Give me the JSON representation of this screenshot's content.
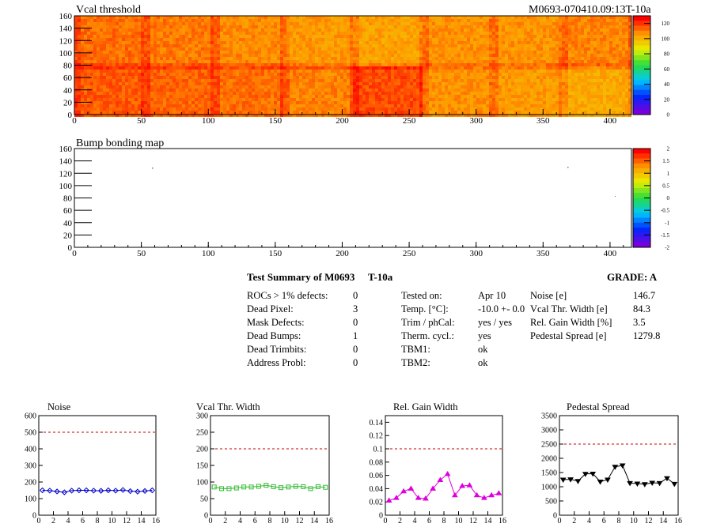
{
  "heatmaps": [
    {
      "title": "Vcal threshold",
      "header_right": "M0693-070410.09:13T-10a",
      "x_ticks": [
        "0",
        "50",
        "100",
        "150",
        "200",
        "250",
        "300",
        "350",
        "400"
      ],
      "y_ticks": [
        "0",
        "20",
        "40",
        "60",
        "80",
        "100",
        "120",
        "140",
        "160"
      ],
      "z_ticks": [
        "0",
        "20",
        "40",
        "60",
        "80",
        "100",
        "120"
      ]
    },
    {
      "title": "Bump bonding map",
      "x_ticks": [
        "0",
        "50",
        "100",
        "150",
        "200",
        "250",
        "300",
        "350",
        "400"
      ],
      "y_ticks": [
        "0",
        "20",
        "40",
        "60",
        "80",
        "100",
        "120",
        "140",
        "160"
      ],
      "z_ticks": [
        "-2",
        "-1.5",
        "-1",
        "-0.5",
        "0",
        "0.5",
        "1",
        "1.5",
        "2"
      ]
    }
  ],
  "summary": {
    "title": "Test Summary of M0693",
    "temp_tag": "T-10a",
    "grade": "GRADE:  A",
    "col1": [
      {
        "label": "ROCs > 1% defects:",
        "value": "0"
      },
      {
        "label": "Dead Pixel:",
        "value": "3"
      },
      {
        "label": "Mask Defects:",
        "value": "0"
      },
      {
        "label": "Dead Bumps:",
        "value": "1"
      },
      {
        "label": "Dead Trimbits:",
        "value": "0"
      },
      {
        "label": "Address Probl:",
        "value": "0"
      }
    ],
    "col2": [
      {
        "label": "Tested on:",
        "value": "Apr 10"
      },
      {
        "label": "Temp. [°C]:",
        "value": "-10.0 +- 0.0"
      },
      {
        "label": "Trim / phCal:",
        "value": "yes / yes"
      },
      {
        "label": "Therm. cycl.:",
        "value": "yes"
      },
      {
        "label": "TBM1:",
        "value": "ok"
      },
      {
        "label": "TBM2:",
        "value": "ok"
      }
    ],
    "col3": [
      {
        "label": "Noise [e]",
        "value": "146.7"
      },
      {
        "label": "Vcal Thr. Width [e]",
        "value": "84.3"
      },
      {
        "label": "Rel. Gain Width [%]",
        "value": "3.5"
      },
      {
        "label": "Pedestal Spread [e]",
        "value": "1279.8"
      }
    ]
  },
  "chart_data": [
    {
      "type": "line",
      "title": "Noise",
      "color": "#0000cc",
      "marker": "diamond",
      "x": [
        0,
        1,
        2,
        3,
        4,
        5,
        6,
        7,
        8,
        9,
        10,
        11,
        12,
        13,
        14,
        15
      ],
      "values": [
        150,
        148,
        143,
        138,
        148,
        150,
        150,
        148,
        147,
        150,
        148,
        152,
        145,
        142,
        146,
        150
      ],
      "ylim": [
        0,
        600
      ],
      "xlim": [
        0,
        16
      ],
      "ref_line": 500,
      "y_ticks": [
        "0",
        "100",
        "200",
        "300",
        "400",
        "500",
        "600"
      ],
      "x_ticks": [
        "0",
        "2",
        "4",
        "6",
        "8",
        "10",
        "12",
        "14",
        "16"
      ]
    },
    {
      "type": "line",
      "title": "Vcal Thr. Width",
      "color": "#33bb33",
      "marker": "square",
      "x": [
        0,
        1,
        2,
        3,
        4,
        5,
        6,
        7,
        8,
        9,
        10,
        11,
        12,
        13,
        14,
        15
      ],
      "values": [
        85,
        80,
        80,
        82,
        85,
        85,
        87,
        90,
        86,
        83,
        85,
        87,
        86,
        80,
        86,
        84
      ],
      "ylim": [
        0,
        300
      ],
      "xlim": [
        0,
        16
      ],
      "ref_line": 200,
      "y_ticks": [
        "0",
        "50",
        "100",
        "150",
        "200",
        "250",
        "300"
      ],
      "x_ticks": [
        "0",
        "2",
        "4",
        "6",
        "8",
        "10",
        "12",
        "14",
        "16"
      ]
    },
    {
      "type": "line",
      "title": "Rel. Gain Width",
      "color": "#dd00dd",
      "marker": "triangle",
      "x": [
        0,
        1,
        2,
        3,
        4,
        5,
        6,
        7,
        8,
        9,
        10,
        11,
        12,
        13,
        14,
        15
      ],
      "values": [
        0.022,
        0.026,
        0.036,
        0.04,
        0.026,
        0.025,
        0.04,
        0.053,
        0.062,
        0.03,
        0.044,
        0.045,
        0.03,
        0.026,
        0.03,
        0.033
      ],
      "ylim": [
        0,
        0.15
      ],
      "xlim": [
        0,
        16
      ],
      "ref_line": 0.1,
      "y_ticks": [
        "0",
        "0.02",
        "0.04",
        "0.06",
        "0.08",
        "0.1",
        "0.12",
        "0.14"
      ],
      "x_ticks": [
        "0",
        "2",
        "4",
        "6",
        "8",
        "10",
        "12",
        "14",
        "16"
      ]
    },
    {
      "type": "line",
      "title": "Pedestal Spread",
      "color": "#000000",
      "marker": "triangle-down",
      "x": [
        0,
        1,
        2,
        3,
        4,
        5,
        6,
        7,
        8,
        9,
        10,
        11,
        12,
        13,
        14,
        15
      ],
      "values": [
        1250,
        1260,
        1200,
        1450,
        1460,
        1180,
        1250,
        1700,
        1750,
        1130,
        1110,
        1090,
        1140,
        1130,
        1300,
        1100
      ],
      "ylim": [
        0,
        3500
      ],
      "xlim": [
        0,
        16
      ],
      "ref_line": 2500,
      "y_ticks": [
        "0",
        "500",
        "1000",
        "1500",
        "2000",
        "2500",
        "3000",
        "3500"
      ],
      "x_ticks": [
        "0",
        "2",
        "4",
        "6",
        "8",
        "10",
        "12",
        "14",
        "16"
      ]
    }
  ]
}
